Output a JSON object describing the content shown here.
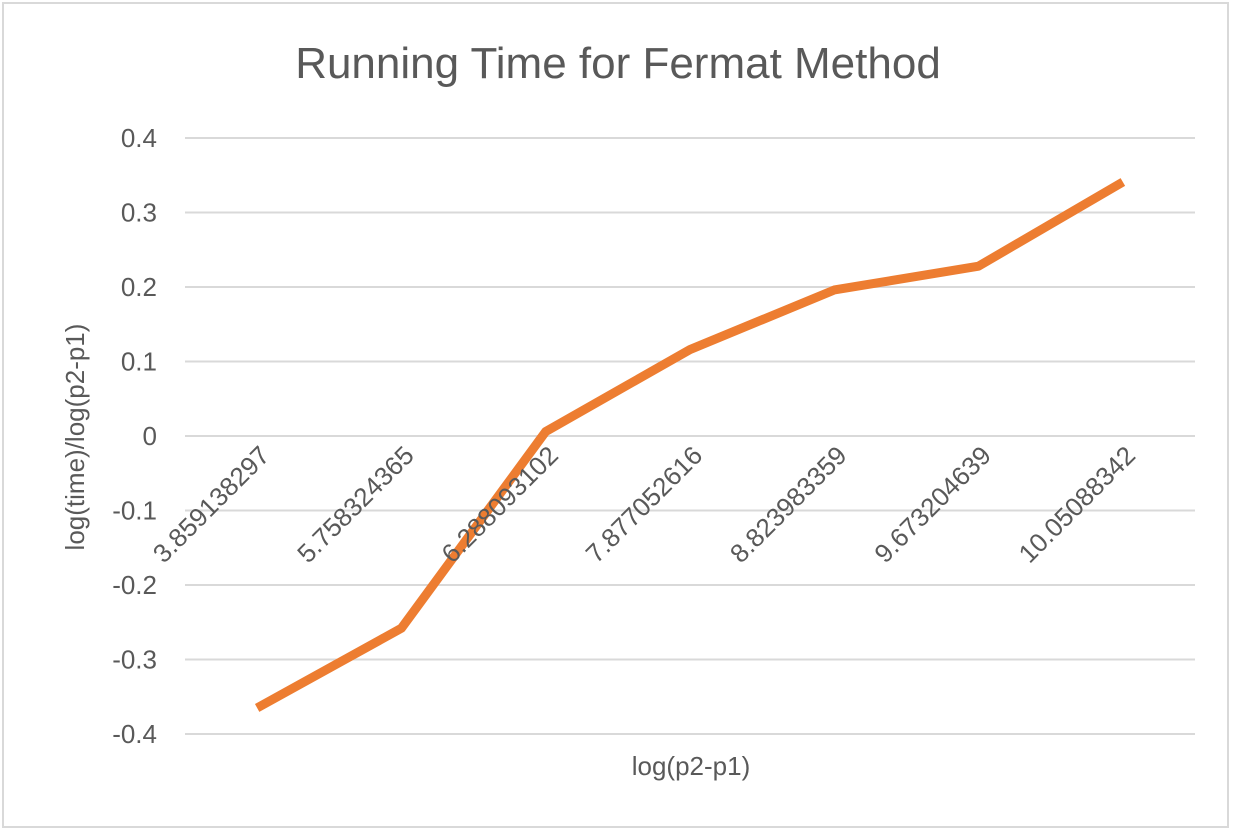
{
  "chart_data": {
    "type": "line",
    "title": "Running Time for Fermat Method",
    "xlabel": "log(p2-p1)",
    "ylabel": "log(time)/log(p2-p1)",
    "categories": [
      "3.859138297",
      "5.758324365",
      "6.288093102",
      "7.877052616",
      "8.823983359",
      "9.673204639",
      "10.05088342"
    ],
    "series": [
      {
        "values": [
          -0.365,
          -0.258,
          0.006,
          0.116,
          0.196,
          0.228,
          0.341
        ],
        "color": "#ED7D31"
      }
    ],
    "yticks": [
      "0.4",
      "0.3",
      "0.2",
      "0.1",
      "0",
      "-0.1",
      "-0.2",
      "-0.3",
      "-0.4"
    ],
    "ylim": [
      -0.4,
      0.4
    ],
    "grid": true,
    "legend": "none"
  }
}
